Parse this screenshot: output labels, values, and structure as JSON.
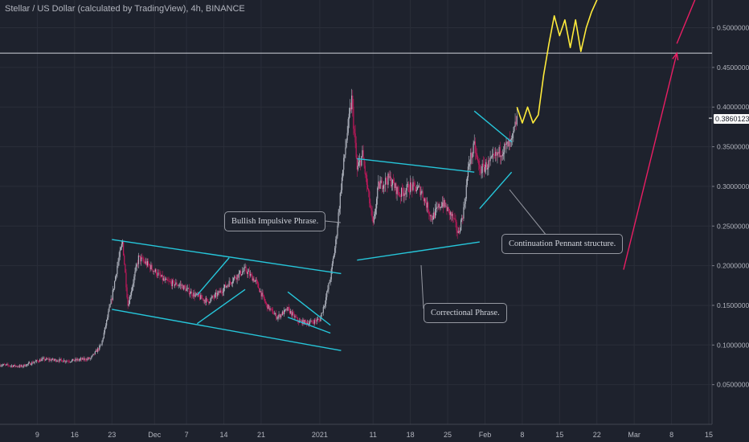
{
  "title": "Stellar / US Dollar (calculated by TradingView), 4h, BINANCE",
  "current_price": "0.38601236",
  "annotations": {
    "bullish": "Bullish Impulsive Phrase.",
    "correctional": "Correctional Phrase.",
    "pennant": "Continuation Pennant structure."
  },
  "colors": {
    "background": "#1e222d",
    "grid": "#2a2e39",
    "up_candle": "#b0b4bf",
    "down_candle": "#c2185b",
    "trendline": "#26c6da",
    "projection": "#ffeb3b",
    "arrow": "#e91e63",
    "horizontal_line": "#d1d4dc"
  },
  "chart_data": {
    "type": "candlestick",
    "title": "Stellar / US Dollar (calculated by TradingView), 4h, BINANCE",
    "y_axis": {
      "position": "right",
      "ticks": [
        "0.50000000",
        "0.45000000",
        "0.40000000",
        "0.35000000",
        "0.30000000",
        "0.25000000",
        "0.20000000",
        "0.15000000",
        "0.10000000",
        "0.05000000"
      ],
      "tick_values": [
        0.5,
        0.45,
        0.4,
        0.35,
        0.3,
        0.25,
        0.2,
        0.15,
        0.1,
        0.05
      ],
      "range": [
        0.0,
        0.54
      ]
    },
    "x_axis": {
      "ticks": [
        "9",
        "16",
        "23",
        "Dec",
        "7",
        "14",
        "21",
        "2021",
        "11",
        "18",
        "25",
        "Feb",
        "8",
        "15",
        "22",
        "Mar",
        "8",
        "15"
      ],
      "tick_dates": [
        "2020-11-09",
        "2020-11-16",
        "2020-11-23",
        "2020-12-01",
        "2020-12-07",
        "2020-12-14",
        "2020-12-21",
        "2021-01-01",
        "2021-01-11",
        "2021-01-18",
        "2021-01-25",
        "2021-02-01",
        "2021-02-08",
        "2021-02-15",
        "2021-02-22",
        "2021-03-01",
        "2021-03-08",
        "2021-03-15"
      ]
    },
    "price_path": [
      [
        "2020-11-02",
        0.075
      ],
      [
        "2020-11-06",
        0.073
      ],
      [
        "2020-11-10",
        0.082
      ],
      [
        "2020-11-15",
        0.08
      ],
      [
        "2020-11-19",
        0.083
      ],
      [
        "2020-11-21",
        0.1
      ],
      [
        "2020-11-22",
        0.13
      ],
      [
        "2020-11-23",
        0.16
      ],
      [
        "2020-11-24",
        0.2
      ],
      [
        "2020-11-25",
        0.23
      ],
      [
        "2020-11-26",
        0.15
      ],
      [
        "2020-11-27",
        0.18
      ],
      [
        "2020-11-28",
        0.21
      ],
      [
        "2020-11-30",
        0.2
      ],
      [
        "2020-12-03",
        0.18
      ],
      [
        "2020-12-06",
        0.175
      ],
      [
        "2020-12-08",
        0.165
      ],
      [
        "2020-12-11",
        0.155
      ],
      [
        "2020-12-13",
        0.165
      ],
      [
        "2020-12-16",
        0.185
      ],
      [
        "2020-12-18",
        0.195
      ],
      [
        "2020-12-20",
        0.18
      ],
      [
        "2020-12-22",
        0.15
      ],
      [
        "2020-12-24",
        0.135
      ],
      [
        "2020-12-26",
        0.145
      ],
      [
        "2020-12-28",
        0.13
      ],
      [
        "2020-12-30",
        0.128
      ],
      [
        "2021-01-01",
        0.132
      ],
      [
        "2021-01-02",
        0.155
      ],
      [
        "2021-01-03",
        0.185
      ],
      [
        "2021-01-04",
        0.23
      ],
      [
        "2021-01-05",
        0.3
      ],
      [
        "2021-01-06",
        0.36
      ],
      [
        "2021-01-07",
        0.41
      ],
      [
        "2021-01-08",
        0.32
      ],
      [
        "2021-01-09",
        0.34
      ],
      [
        "2021-01-11",
        0.25
      ],
      [
        "2021-01-12",
        0.3
      ],
      [
        "2021-01-14",
        0.31
      ],
      [
        "2021-01-16",
        0.29
      ],
      [
        "2021-01-18",
        0.3
      ],
      [
        "2021-01-20",
        0.295
      ],
      [
        "2021-01-22",
        0.26
      ],
      [
        "2021-01-24",
        0.28
      ],
      [
        "2021-01-26",
        0.26
      ],
      [
        "2021-01-27",
        0.24
      ],
      [
        "2021-01-28",
        0.27
      ],
      [
        "2021-01-29",
        0.33
      ],
      [
        "2021-01-30",
        0.35
      ],
      [
        "2021-01-31",
        0.32
      ],
      [
        "2021-02-02",
        0.33
      ],
      [
        "2021-02-04",
        0.345
      ],
      [
        "2021-02-06",
        0.355
      ],
      [
        "2021-02-07",
        0.386
      ]
    ],
    "trendlines": [
      {
        "name": "channel-upper",
        "from": [
          "2020-11-23",
          0.233
        ],
        "to": [
          "2021-01-05",
          0.19
        ]
      },
      {
        "name": "channel-lower",
        "from": [
          "2020-11-23",
          0.145
        ],
        "to": [
          "2021-01-05",
          0.093
        ]
      },
      {
        "name": "flag-1-upper",
        "from": [
          "2020-12-09",
          0.163
        ],
        "to": [
          "2020-12-15",
          0.21
        ]
      },
      {
        "name": "flag-1-lower",
        "from": [
          "2020-12-09",
          0.127
        ],
        "to": [
          "2020-12-18",
          0.17
        ]
      },
      {
        "name": "flag-2-upper",
        "from": [
          "2020-12-26",
          0.167
        ],
        "to": [
          "2021-01-03",
          0.125
        ]
      },
      {
        "name": "flag-2-lower",
        "from": [
          "2020-12-26",
          0.135
        ],
        "to": [
          "2021-01-03",
          0.115
        ]
      },
      {
        "name": "range-upper",
        "from": [
          "2021-01-08",
          0.335
        ],
        "to": [
          "2021-01-30",
          0.318
        ]
      },
      {
        "name": "range-lower",
        "from": [
          "2021-01-08",
          0.207
        ],
        "to": [
          "2021-01-31",
          0.23
        ]
      },
      {
        "name": "pennant-upper",
        "from": [
          "2021-01-30",
          0.395
        ],
        "to": [
          "2021-02-06",
          0.356
        ]
      },
      {
        "name": "pennant-lower",
        "from": [
          "2021-01-31",
          0.272
        ],
        "to": [
          "2021-02-06",
          0.318
        ]
      }
    ],
    "horizontal_line": 0.468,
    "projection_path": [
      [
        "2021-02-07",
        0.4
      ],
      [
        "2021-02-08",
        0.38
      ],
      [
        "2021-02-09",
        0.4
      ],
      [
        "2021-02-10",
        0.38
      ],
      [
        "2021-02-11",
        0.39
      ],
      [
        "2021-02-12",
        0.44
      ],
      [
        "2021-02-13",
        0.48
      ],
      [
        "2021-02-14",
        0.515
      ],
      [
        "2021-02-15",
        0.49
      ],
      [
        "2021-02-16",
        0.51
      ],
      [
        "2021-02-17",
        0.475
      ],
      [
        "2021-02-18",
        0.51
      ],
      [
        "2021-02-19",
        0.47
      ],
      [
        "2021-02-20",
        0.5
      ],
      [
        "2021-02-21",
        0.52
      ],
      [
        "2021-02-23",
        0.55
      ]
    ],
    "arrow": {
      "from": [
        "2021-02-27",
        0.195
      ],
      "to": [
        "2021-03-09",
        0.468
      ]
    },
    "arrow_top_line": {
      "from": [
        "2021-03-09",
        0.48
      ],
      "to": [
        "2021-03-13",
        0.545
      ]
    }
  }
}
